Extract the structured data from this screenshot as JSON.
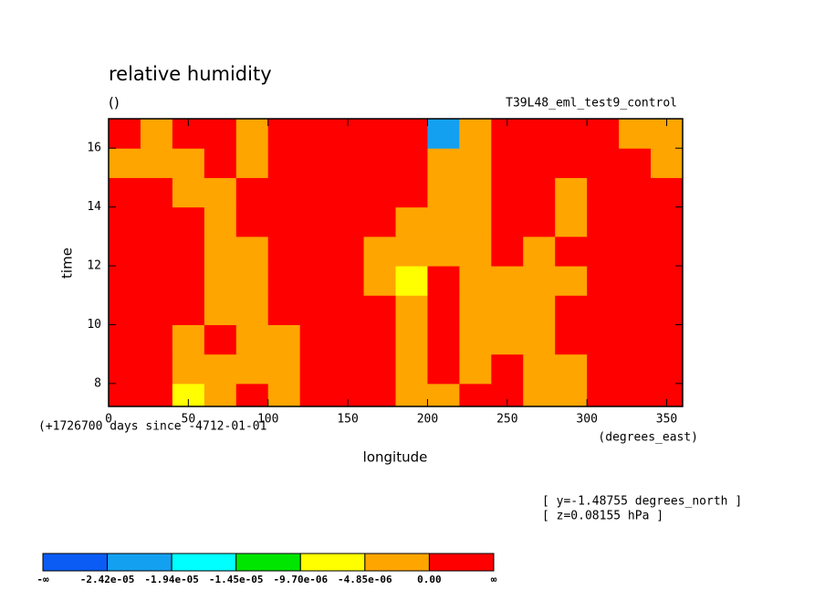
{
  "chart_data": {
    "type": "contour",
    "title": "relative humidity",
    "units": "()",
    "dataset": "T39L48_eml_test9_control",
    "time_origin": "(+1726700 days since -4712-01-01",
    "x_units": "(degrees_east)",
    "xlabel": "longitude",
    "ylabel": "time",
    "notes": [
      "[ y=-1.48755 degrees_north ]",
      "[ z=0.08155 hPa ]"
    ],
    "xlim": [
      0,
      360
    ],
    "xticks": [
      0,
      50,
      100,
      150,
      200,
      250,
      300,
      350
    ],
    "ylim": [
      7.22,
      17
    ],
    "yticks": [
      8,
      10,
      12,
      14,
      16
    ],
    "x": [
      10,
      30,
      50,
      70,
      90,
      110,
      130,
      150,
      170,
      190,
      210,
      230,
      250,
      270,
      290,
      310,
      330,
      350
    ],
    "y": [
      7.5,
      8.5,
      9.5,
      10.5,
      11.5,
      12.5,
      13.5,
      14.5,
      15.5,
      16.5
    ],
    "z": [
      [
        1e-05,
        1e-05,
        -6e-06,
        -2e-06,
        1e-05,
        -2e-06,
        1e-05,
        1e-05,
        1e-05,
        -2e-06,
        -2e-06,
        1e-05,
        1e-05,
        -2e-06,
        -2e-06,
        1e-05,
        1e-05,
        1e-05
      ],
      [
        1e-05,
        1e-05,
        -2e-06,
        -2e-06,
        -2e-06,
        -2e-06,
        1e-05,
        1e-05,
        1e-05,
        -2e-06,
        1e-05,
        -2e-06,
        1e-05,
        -2e-06,
        -2e-06,
        1e-05,
        1e-05,
        1e-05
      ],
      [
        1e-05,
        1e-05,
        -2e-06,
        1e-05,
        -2e-06,
        -2e-06,
        1e-05,
        1e-05,
        1e-05,
        -2e-06,
        1e-05,
        -2e-06,
        -2e-06,
        -2e-06,
        1e-05,
        1e-05,
        1e-05,
        1e-05
      ],
      [
        1e-05,
        1e-05,
        1e-05,
        -2e-06,
        -2e-06,
        1e-05,
        1e-05,
        1e-05,
        1e-05,
        -2e-06,
        1e-05,
        -2e-06,
        -2e-06,
        -2e-06,
        1e-05,
        1e-05,
        1e-05,
        1e-05
      ],
      [
        1e-05,
        1e-05,
        1e-05,
        -2e-06,
        -2e-06,
        1e-05,
        1e-05,
        1e-05,
        -2e-06,
        -6e-06,
        1e-05,
        -2e-06,
        -2e-06,
        -2e-06,
        -2e-06,
        1e-05,
        1e-05,
        1e-05
      ],
      [
        1e-05,
        1e-05,
        1e-05,
        -2e-06,
        -2e-06,
        1e-05,
        1e-05,
        1e-05,
        -2e-06,
        -2e-06,
        -2e-06,
        -2e-06,
        1e-05,
        -2e-06,
        1e-05,
        1e-05,
        1e-05,
        1e-05
      ],
      [
        1e-05,
        1e-05,
        1e-05,
        -2e-06,
        1e-05,
        1e-05,
        1e-05,
        1e-05,
        1e-05,
        -2e-06,
        -2e-06,
        -2e-06,
        1e-05,
        1e-05,
        -2e-06,
        1e-05,
        1e-05,
        1e-05
      ],
      [
        1e-05,
        1e-05,
        -2e-06,
        -2e-06,
        1e-05,
        1e-05,
        1e-05,
        1e-05,
        1e-05,
        1e-05,
        -2e-06,
        -2e-06,
        1e-05,
        1e-05,
        -2e-06,
        1e-05,
        1e-05,
        1e-05
      ],
      [
        -2e-06,
        -2e-06,
        -2e-06,
        1e-05,
        -2e-06,
        1e-05,
        1e-05,
        1e-05,
        1e-05,
        1e-05,
        -2e-06,
        -2e-06,
        1e-05,
        1e-05,
        1e-05,
        1e-05,
        1e-05,
        -2e-06
      ],
      [
        1e-05,
        -2e-06,
        1e-05,
        1e-05,
        -2e-06,
        1e-05,
        1e-05,
        1e-05,
        1e-05,
        1e-05,
        -2e-05,
        -2e-06,
        1e-05,
        1e-05,
        1e-05,
        1e-05,
        -2e-06,
        -2e-06
      ]
    ],
    "levels": [
      {
        "value": -2.42e-05,
        "label": "-2.42e-05"
      },
      {
        "value": -1.94e-05,
        "label": "-1.94e-05"
      },
      {
        "value": -1.45e-05,
        "label": "-1.45e-05"
      },
      {
        "value": -9.7e-06,
        "label": "-9.70e-06"
      },
      {
        "value": -4.85e-06,
        "label": "-4.85e-06"
      },
      {
        "value": 0,
        "label": "0.00"
      }
    ],
    "level_ends": [
      "-∞",
      "∞"
    ],
    "colors": [
      "#0a5cf5",
      "#14a0f0",
      "#00ffff",
      "#00e600",
      "#ffff00",
      "#ffa500",
      "#ff0000"
    ]
  }
}
